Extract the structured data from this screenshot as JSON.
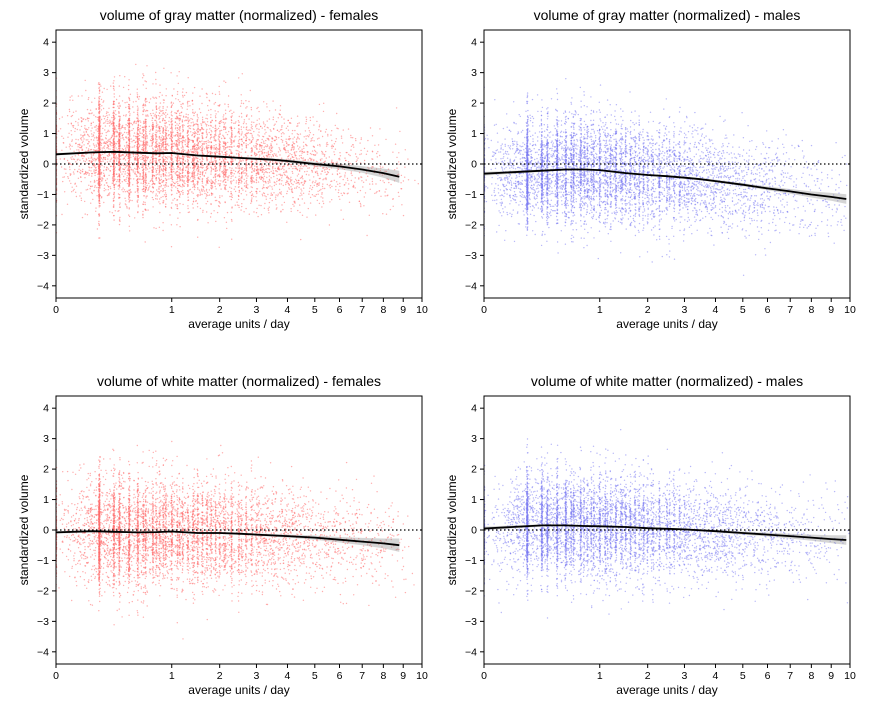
{
  "chart_data": [
    {
      "type": "scatter",
      "title": "volume of gray matter (normalized) - females",
      "xlabel": "average units / day",
      "ylabel": "standardized volume",
      "x_scale": "sqrt",
      "xlim": [
        0,
        10
      ],
      "ylim": [
        -4.4,
        4.4
      ],
      "x_ticks": [
        0,
        1,
        2,
        3,
        4,
        5,
        6,
        7,
        8,
        9,
        10
      ],
      "y_ticks": [
        -4,
        -3,
        -2,
        -1,
        0,
        1,
        2,
        3,
        4
      ],
      "reference_line_y": 0,
      "point_color": "#ff6b6b",
      "trend_x": [
        0,
        0.1,
        0.25,
        0.5,
        0.75,
        1.0,
        1.5,
        2.0,
        2.5,
        3.0,
        3.5,
        4.0,
        4.5,
        5.0,
        6.0,
        7.0,
        8.0,
        8.8
      ],
      "trend_y": [
        0.32,
        0.38,
        0.4,
        0.37,
        0.35,
        0.36,
        0.28,
        0.24,
        0.2,
        0.17,
        0.14,
        0.1,
        0.05,
        0.0,
        -0.08,
        -0.18,
        -0.3,
        -0.42
      ],
      "ci_halfwidth": [
        0.04,
        0.03,
        0.03,
        0.03,
        0.03,
        0.03,
        0.03,
        0.03,
        0.03,
        0.04,
        0.04,
        0.05,
        0.06,
        0.07,
        0.09,
        0.11,
        0.15,
        0.2
      ],
      "scatter_spread_sd": 0.9,
      "scatter_spread_sd_at_max_x": 0.65
    },
    {
      "type": "scatter",
      "title": "volume of gray matter (normalized) - males",
      "xlabel": "average units / day",
      "ylabel": "standardized volume",
      "x_scale": "sqrt",
      "xlim": [
        0,
        10
      ],
      "ylim": [
        -4.4,
        4.4
      ],
      "x_ticks": [
        0,
        1,
        2,
        3,
        4,
        5,
        6,
        7,
        8,
        9,
        10
      ],
      "y_ticks": [
        -4,
        -3,
        -2,
        -1,
        0,
        1,
        2,
        3,
        4
      ],
      "reference_line_y": 0,
      "point_color": "#7b7bf2",
      "trend_x": [
        0,
        0.25,
        0.5,
        0.75,
        1.0,
        1.5,
        2.0,
        2.5,
        3.0,
        3.5,
        4.0,
        5.0,
        6.0,
        7.0,
        8.0,
        9.0,
        9.8
      ],
      "trend_y": [
        -0.32,
        -0.22,
        -0.18,
        -0.18,
        -0.2,
        -0.3,
        -0.36,
        -0.4,
        -0.45,
        -0.5,
        -0.56,
        -0.68,
        -0.8,
        -0.9,
        -1.0,
        -1.08,
        -1.15
      ],
      "ci_halfwidth": [
        0.06,
        0.04,
        0.03,
        0.03,
        0.03,
        0.03,
        0.03,
        0.03,
        0.03,
        0.03,
        0.04,
        0.05,
        0.06,
        0.08,
        0.1,
        0.13,
        0.16
      ],
      "scatter_spread_sd": 0.85,
      "scatter_spread_sd_at_max_x": 0.8
    },
    {
      "type": "scatter",
      "title": "volume of white matter (normalized) - females",
      "xlabel": "average units / day",
      "ylabel": "standardized volume",
      "x_scale": "sqrt",
      "xlim": [
        0,
        10
      ],
      "ylim": [
        -4.4,
        4.4
      ],
      "x_ticks": [
        0,
        1,
        2,
        3,
        4,
        5,
        6,
        7,
        8,
        9,
        10
      ],
      "y_ticks": [
        -4,
        -3,
        -2,
        -1,
        0,
        1,
        2,
        3,
        4
      ],
      "reference_line_y": 0,
      "point_color": "#ff6b6b",
      "trend_x": [
        0,
        0.1,
        0.25,
        0.5,
        0.75,
        1.0,
        1.5,
        2.0,
        2.5,
        3.0,
        4.0,
        5.0,
        6.0,
        7.0,
        8.0,
        8.8
      ],
      "trend_y": [
        -0.08,
        -0.04,
        -0.06,
        -0.08,
        -0.07,
        -0.05,
        -0.1,
        -0.1,
        -0.12,
        -0.15,
        -0.2,
        -0.25,
        -0.32,
        -0.38,
        -0.44,
        -0.5
      ],
      "ci_halfwidth": [
        0.04,
        0.03,
        0.03,
        0.03,
        0.03,
        0.03,
        0.03,
        0.03,
        0.03,
        0.04,
        0.05,
        0.07,
        0.09,
        0.12,
        0.16,
        0.22
      ],
      "scatter_spread_sd": 0.9,
      "scatter_spread_sd_at_max_x": 0.7
    },
    {
      "type": "scatter",
      "title": "volume of white matter (normalized) - males",
      "xlabel": "average units / day",
      "ylabel": "standardized volume",
      "x_scale": "sqrt",
      "xlim": [
        0,
        10
      ],
      "ylim": [
        -4.4,
        4.4
      ],
      "x_ticks": [
        0,
        1,
        2,
        3,
        4,
        5,
        6,
        7,
        8,
        9,
        10
      ],
      "y_ticks": [
        -4,
        -3,
        -2,
        -1,
        0,
        1,
        2,
        3,
        4
      ],
      "reference_line_y": 0,
      "point_color": "#7b7bf2",
      "trend_x": [
        0,
        0.25,
        0.5,
        0.75,
        1.0,
        1.5,
        2.0,
        2.5,
        3.0,
        4.0,
        5.0,
        6.0,
        7.0,
        8.0,
        9.0,
        9.8
      ],
      "trend_y": [
        0.05,
        0.15,
        0.15,
        0.13,
        0.12,
        0.1,
        0.06,
        0.04,
        0.02,
        -0.04,
        -0.1,
        -0.15,
        -0.2,
        -0.25,
        -0.3,
        -0.33
      ],
      "ci_halfwidth": [
        0.06,
        0.04,
        0.03,
        0.03,
        0.03,
        0.03,
        0.03,
        0.03,
        0.03,
        0.04,
        0.05,
        0.06,
        0.08,
        0.1,
        0.13,
        0.16
      ],
      "scatter_spread_sd": 0.85,
      "scatter_spread_sd_at_max_x": 0.8
    }
  ]
}
